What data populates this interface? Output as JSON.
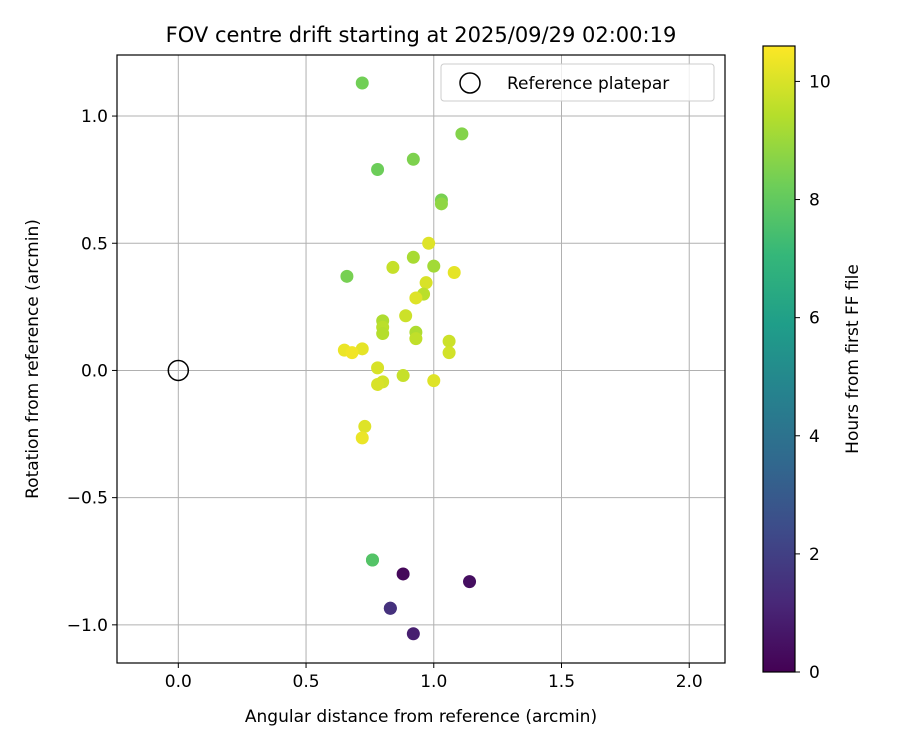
{
  "chart_data": {
    "type": "scatter",
    "title": "FOV centre drift starting at 2025/09/29 02:00:19",
    "xlabel": "Angular distance from reference (arcmin)",
    "ylabel": "Rotation from reference (arcmin)",
    "xlim": [
      -0.24,
      2.14
    ],
    "ylim": [
      -1.15,
      1.24
    ],
    "xticks": [
      0.0,
      0.5,
      1.0,
      1.5,
      2.0
    ],
    "xtick_labels": [
      "0.0",
      "0.5",
      "1.0",
      "1.5",
      "2.0"
    ],
    "yticks": [
      -1.0,
      -0.5,
      0.0,
      0.5,
      1.0
    ],
    "ytick_labels": [
      "−1.0",
      "−0.5",
      "0.0",
      "0.5",
      "1.0"
    ],
    "grid": true,
    "legend": {
      "placement": "top-right",
      "entries": [
        "Reference platepar"
      ]
    },
    "reference_point": {
      "x": 0.0,
      "y": 0.0,
      "label": "Reference platepar"
    },
    "colorbar": {
      "label": "Hours from first FF file",
      "colormap": "viridis",
      "range": [
        0,
        10.6
      ],
      "ticks": [
        0,
        2,
        4,
        6,
        8,
        10
      ],
      "tick_labels": [
        "0",
        "2",
        "4",
        "6",
        "8",
        "10"
      ]
    },
    "points": [
      {
        "x": 0.72,
        "y": 1.13,
        "hours": 8.3
      },
      {
        "x": 1.11,
        "y": 0.93,
        "hours": 8.6
      },
      {
        "x": 0.92,
        "y": 0.83,
        "hours": 8.5
      },
      {
        "x": 0.78,
        "y": 0.79,
        "hours": 8.2
      },
      {
        "x": 1.03,
        "y": 0.67,
        "hours": 8.4
      },
      {
        "x": 1.03,
        "y": 0.655,
        "hours": 8.8
      },
      {
        "x": 0.98,
        "y": 0.5,
        "hours": 10.1
      },
      {
        "x": 0.92,
        "y": 0.445,
        "hours": 9.2
      },
      {
        "x": 1.0,
        "y": 0.41,
        "hours": 9.1
      },
      {
        "x": 0.84,
        "y": 0.405,
        "hours": 9.7
      },
      {
        "x": 1.08,
        "y": 0.385,
        "hours": 10.2
      },
      {
        "x": 0.66,
        "y": 0.37,
        "hours": 8.4
      },
      {
        "x": 0.97,
        "y": 0.345,
        "hours": 10.0
      },
      {
        "x": 0.96,
        "y": 0.3,
        "hours": 9.5
      },
      {
        "x": 0.93,
        "y": 0.285,
        "hours": 10.1
      },
      {
        "x": 0.89,
        "y": 0.215,
        "hours": 9.8
      },
      {
        "x": 0.8,
        "y": 0.195,
        "hours": 9.3
      },
      {
        "x": 0.8,
        "y": 0.17,
        "hours": 9.5
      },
      {
        "x": 0.8,
        "y": 0.145,
        "hours": 9.4
      },
      {
        "x": 0.93,
        "y": 0.15,
        "hours": 9.3
      },
      {
        "x": 0.93,
        "y": 0.125,
        "hours": 9.6
      },
      {
        "x": 1.06,
        "y": 0.115,
        "hours": 9.8
      },
      {
        "x": 0.72,
        "y": 0.085,
        "hours": 10.2
      },
      {
        "x": 0.65,
        "y": 0.08,
        "hours": 10.3
      },
      {
        "x": 0.68,
        "y": 0.07,
        "hours": 10.4
      },
      {
        "x": 1.06,
        "y": 0.07,
        "hours": 9.9
      },
      {
        "x": 0.78,
        "y": 0.01,
        "hours": 10.0
      },
      {
        "x": 0.88,
        "y": -0.02,
        "hours": 9.7
      },
      {
        "x": 1.0,
        "y": -0.04,
        "hours": 10.1
      },
      {
        "x": 0.8,
        "y": -0.045,
        "hours": 9.9
      },
      {
        "x": 0.78,
        "y": -0.055,
        "hours": 10.0
      },
      {
        "x": 0.73,
        "y": -0.22,
        "hours": 10.1
      },
      {
        "x": 0.72,
        "y": -0.265,
        "hours": 10.3
      },
      {
        "x": 0.76,
        "y": -0.745,
        "hours": 7.9
      },
      {
        "x": 0.76,
        "y": -0.745,
        "hours": 7.7
      },
      {
        "x": 0.88,
        "y": -0.8,
        "hours": 0.2
      },
      {
        "x": 1.14,
        "y": -0.83,
        "hours": 0.4
      },
      {
        "x": 0.83,
        "y": -0.935,
        "hours": 1.3
      },
      {
        "x": 0.83,
        "y": -0.935,
        "hours": 1.5
      },
      {
        "x": 0.92,
        "y": -1.035,
        "hours": 0.9
      }
    ]
  }
}
